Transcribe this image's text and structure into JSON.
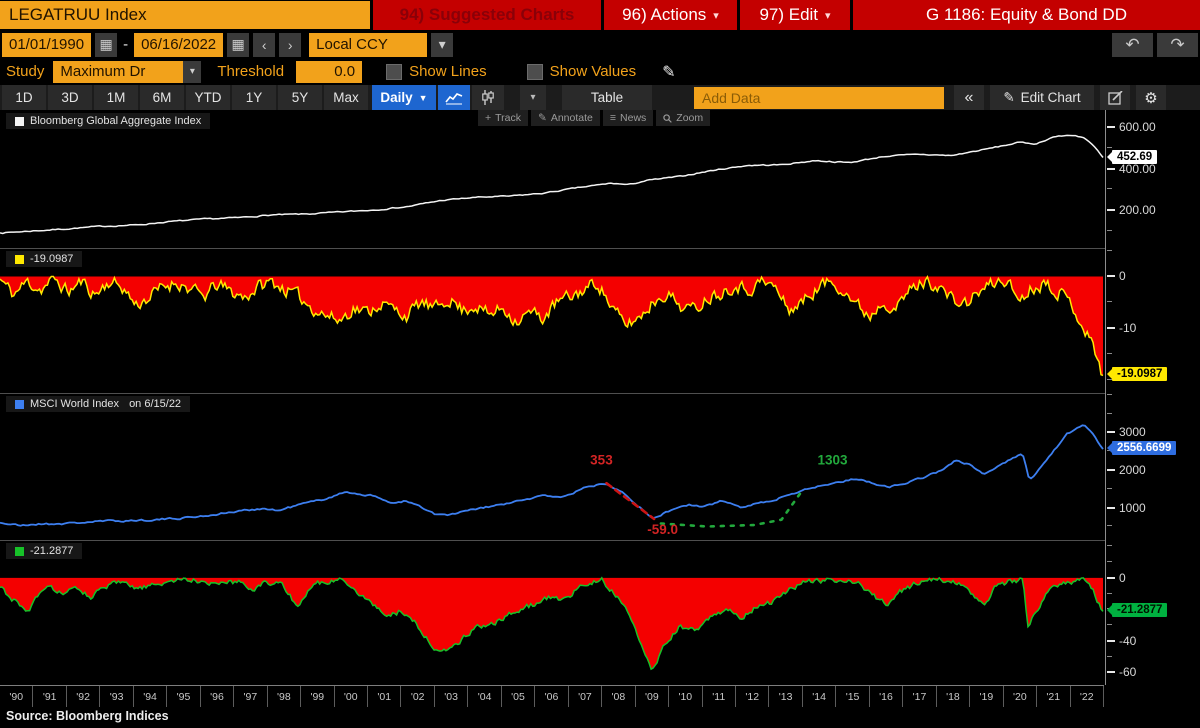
{
  "titlebar": {
    "ticker": "LEGATRUU Index",
    "suggested": "94) Suggested Charts",
    "actions": "96) Actions",
    "edit": "97) Edit",
    "title": "G 1186: Equity & Bond DD"
  },
  "datebar": {
    "start": "01/01/1990",
    "dash": "-",
    "end": "06/16/2022",
    "currency": "Local CCY"
  },
  "studybar": {
    "study_label": "Study",
    "study_value": "Maximum Dr",
    "threshold_label": "Threshold",
    "threshold_value": "0.0",
    "show_lines": "Show Lines",
    "show_values": "Show Values"
  },
  "toolbar": {
    "ranges": [
      "1D",
      "3D",
      "1M",
      "6M",
      "YTD",
      "1Y",
      "5Y",
      "Max"
    ],
    "period": "Daily",
    "table_label": "Table",
    "add_data_placeholder": "Add Data",
    "edit_chart": "Edit Chart"
  },
  "icons": {
    "calendar": "▦",
    "chevron_left": "‹",
    "chevron_right": "›",
    "dropdown": "▾",
    "daily_caret": "▼",
    "undo": "↶",
    "redo": "↷",
    "pencil": "✎",
    "collapse": "«",
    "gear": "⚙",
    "track": "+",
    "annotate": "✎",
    "news": "≡"
  },
  "minibar": {
    "items": [
      "Track",
      "Annotate",
      "News",
      "Zoom"
    ]
  },
  "xaxis": {
    "years": [
      "'90",
      "'91",
      "'92",
      "'93",
      "'94",
      "'95",
      "'96",
      "'97",
      "'98",
      "'99",
      "'00",
      "'01",
      "'02",
      "'03",
      "'04",
      "'05",
      "'06",
      "'07",
      "'08",
      "'09",
      "'10",
      "'11",
      "'12",
      "'13",
      "'14",
      "'15",
      "'16",
      "'17",
      "'18",
      "'19",
      "'20",
      "'21",
      "'22"
    ]
  },
  "source": "Source: Bloomberg Indices",
  "colors": {
    "amber": "#f2a21b",
    "red_bar": "#c40000",
    "blue_button": "#1e66d0",
    "fill_red": "#f40000",
    "line_white": "#f4f4f4",
    "line_yellow": "#ffe800",
    "line_blue": "#3d7ff0",
    "line_green": "#17c229"
  },
  "chart_data": [
    {
      "type": "line",
      "legend": "Bloomberg Global Aggregate Index",
      "color": "#f4f4f4",
      "x_range": [
        1990,
        2022.46
      ],
      "ylim": [
        20,
        680
      ],
      "yticks": [
        {
          "v": 600,
          "label": "600.00"
        },
        {
          "v": 400,
          "label": "400.00"
        },
        {
          "v": 200,
          "label": "200.00"
        }
      ],
      "minor_step": 100,
      "badge": {
        "label": "452.69",
        "value": 452.69,
        "bg": "#ffffff",
        "fg": "#000000"
      },
      "points": [
        [
          1990,
          92
        ],
        [
          1991,
          102
        ],
        [
          1992,
          112
        ],
        [
          1993,
          124
        ],
        [
          1994,
          130
        ],
        [
          1995,
          146
        ],
        [
          1996,
          158
        ],
        [
          1997,
          165
        ],
        [
          1998,
          178
        ],
        [
          1999,
          182
        ],
        [
          2000,
          192
        ],
        [
          2001,
          202
        ],
        [
          2002,
          218
        ],
        [
          2003,
          248
        ],
        [
          2004,
          262
        ],
        [
          2005,
          268
        ],
        [
          2006,
          282
        ],
        [
          2007,
          308
        ],
        [
          2008,
          330
        ],
        [
          2008.5,
          322
        ],
        [
          2009,
          342
        ],
        [
          2010,
          362
        ],
        [
          2011,
          392
        ],
        [
          2012,
          415
        ],
        [
          2013,
          418
        ],
        [
          2014,
          438
        ],
        [
          2015,
          428
        ],
        [
          2016,
          458
        ],
        [
          2017,
          468
        ],
        [
          2018,
          462
        ],
        [
          2019,
          492
        ],
        [
          2020,
          525
        ],
        [
          2020.5,
          518
        ],
        [
          2021,
          552
        ],
        [
          2021.6,
          560
        ],
        [
          2021.9,
          548
        ],
        [
          2022.2,
          505
        ],
        [
          2022.46,
          452.69
        ]
      ]
    },
    {
      "type": "area-drawdown",
      "legend": "-19.0987",
      "color": "#ffe800",
      "fill": "#f40000",
      "x_range": [
        1990,
        2022.46
      ],
      "ylim": [
        -22.5,
        5.5
      ],
      "yticks": [
        {
          "v": 0,
          "label": "0"
        },
        {
          "v": -10,
          "label": "-10"
        }
      ],
      "minor_step": 5,
      "badge": {
        "label": "-19.0987",
        "value": -19.0987,
        "bg": "#ffe800",
        "fg": "#000000"
      },
      "points": [
        [
          1990,
          -0.5
        ],
        [
          1990.4,
          -3.5
        ],
        [
          1990.8,
          -1
        ],
        [
          1991.2,
          -2.5
        ],
        [
          1991.6,
          -0.5
        ],
        [
          1992,
          -3
        ],
        [
          1992.4,
          -1
        ],
        [
          1992.8,
          -3.5
        ],
        [
          1993.2,
          -1
        ],
        [
          1993.6,
          -2
        ],
        [
          1994,
          -5.5
        ],
        [
          1994.4,
          -4
        ],
        [
          1994.8,
          -2
        ],
        [
          1995.2,
          -1
        ],
        [
          1995.6,
          -2.5
        ],
        [
          1996,
          -4
        ],
        [
          1996.4,
          -1.5
        ],
        [
          1996.8,
          -3
        ],
        [
          1997.2,
          -4
        ],
        [
          1997.6,
          -2
        ],
        [
          1998,
          -1
        ],
        [
          1998.4,
          -2.5
        ],
        [
          1998.8,
          -4
        ],
        [
          1999.2,
          -6
        ],
        [
          1999.6,
          -7.5
        ],
        [
          2000,
          -8.5
        ],
        [
          2000.4,
          -6
        ],
        [
          2000.8,
          -7
        ],
        [
          2001.2,
          -5
        ],
        [
          2001.6,
          -6.5
        ],
        [
          2002,
          -7.5
        ],
        [
          2002.4,
          -5
        ],
        [
          2002.8,
          -6.5
        ],
        [
          2003.2,
          -4
        ],
        [
          2003.6,
          -6.5
        ],
        [
          2004,
          -5.5
        ],
        [
          2004.4,
          -7.5
        ],
        [
          2004.8,
          -6
        ],
        [
          2005.2,
          -8.5
        ],
        [
          2005.6,
          -7
        ],
        [
          2006,
          -8
        ],
        [
          2006.4,
          -5
        ],
        [
          2006.8,
          -4
        ],
        [
          2007.2,
          -2.5
        ],
        [
          2007.6,
          -1
        ],
        [
          2008,
          -6
        ],
        [
          2008.4,
          -9.5
        ],
        [
          2008.8,
          -8
        ],
        [
          2009.2,
          -5
        ],
        [
          2009.6,
          -3
        ],
        [
          2010,
          -5.5
        ],
        [
          2010.4,
          -6.5
        ],
        [
          2010.8,
          -4
        ],
        [
          2011.2,
          -3
        ],
        [
          2011.6,
          -1.5
        ],
        [
          2012,
          -2.5
        ],
        [
          2012.4,
          -1
        ],
        [
          2012.8,
          -2
        ],
        [
          2013.2,
          -6.5
        ],
        [
          2013.6,
          -5
        ],
        [
          2014,
          -2.5
        ],
        [
          2014.4,
          -1
        ],
        [
          2014.8,
          -2
        ],
        [
          2015.2,
          -5.5
        ],
        [
          2015.6,
          -7.5
        ],
        [
          2016,
          -4.5
        ],
        [
          2016.4,
          -6
        ],
        [
          2016.8,
          -2.5
        ],
        [
          2017.2,
          -1
        ],
        [
          2017.6,
          -1.5
        ],
        [
          2018,
          -4.5
        ],
        [
          2018.4,
          -5.5
        ],
        [
          2018.8,
          -3
        ],
        [
          2019.2,
          -1.5
        ],
        [
          2019.6,
          -0.5
        ],
        [
          2020,
          -4.5
        ],
        [
          2020.4,
          -2
        ],
        [
          2020.8,
          -1
        ],
        [
          2021.2,
          -3
        ],
        [
          2021.6,
          -6
        ],
        [
          2022,
          -11
        ],
        [
          2022.25,
          -15
        ],
        [
          2022.46,
          -19.0987
        ]
      ]
    },
    {
      "type": "line",
      "legend": "MSCI World Index",
      "legend_suffix": "on 6/15/22",
      "color": "#3d7ff0",
      "x_range": [
        1990,
        2022.46
      ],
      "ylim": [
        140,
        4050
      ],
      "yticks": [
        {
          "v": 3000,
          "label": "3000"
        },
        {
          "v": 2000,
          "label": "2000"
        },
        {
          "v": 1000,
          "label": "1000"
        }
      ],
      "minor_step": 500,
      "badge": {
        "label": "2556.6699",
        "value": 2556.6699,
        "bg": "#2e6de0",
        "fg": "#ffffff"
      },
      "points": [
        [
          1990,
          600
        ],
        [
          1990.6,
          520
        ],
        [
          1991,
          560
        ],
        [
          1992,
          580
        ],
        [
          1993,
          640
        ],
        [
          1994,
          660
        ],
        [
          1995,
          700
        ],
        [
          1996,
          780
        ],
        [
          1997,
          900
        ],
        [
          1997.7,
          980
        ],
        [
          1998.2,
          920
        ],
        [
          1998.8,
          1080
        ],
        [
          1999.5,
          1220
        ],
        [
          2000.2,
          1420
        ],
        [
          2000.9,
          1320
        ],
        [
          2001.6,
          1120
        ],
        [
          2001.9,
          1180
        ],
        [
          2002.3,
          1050
        ],
        [
          2002.8,
          820
        ],
        [
          2003.2,
          800
        ],
        [
          2004,
          960
        ],
        [
          2005,
          1120
        ],
        [
          2006,
          1320
        ],
        [
          2006.6,
          1290
        ],
        [
          2007.3,
          1560
        ],
        [
          2007.85,
          1650
        ],
        [
          2008.3,
          1440
        ],
        [
          2008.7,
          1120
        ],
        [
          2009.2,
          700
        ],
        [
          2009.8,
          960
        ],
        [
          2010.3,
          1080
        ],
        [
          2010.7,
          1000
        ],
        [
          2011.2,
          1180
        ],
        [
          2011.8,
          1030
        ],
        [
          2012.3,
          1120
        ],
        [
          2012.8,
          1200
        ],
        [
          2013.3,
          1380
        ],
        [
          2013.8,
          1520
        ],
        [
          2014.5,
          1640
        ],
        [
          2015.2,
          1780
        ],
        [
          2015.8,
          1620
        ],
        [
          2016.2,
          1560
        ],
        [
          2016.9,
          1720
        ],
        [
          2017.6,
          1950
        ],
        [
          2018.1,
          2240
        ],
        [
          2018.6,
          2120
        ],
        [
          2018.95,
          1880
        ],
        [
          2019.6,
          2220
        ],
        [
          2020.1,
          2430
        ],
        [
          2020.3,
          1720
        ],
        [
          2020.9,
          2380
        ],
        [
          2021.4,
          2950
        ],
        [
          2021.9,
          3200
        ],
        [
          2022.1,
          3050
        ],
        [
          2022.35,
          2700
        ],
        [
          2022.46,
          2556.6699
        ]
      ],
      "annotations": {
        "labels": [
          {
            "text": "353",
            "x": 2007.7,
            "y": 2150,
            "color": "#d22424"
          },
          {
            "text": "-59.0",
            "x": 2009.5,
            "y": 300,
            "color": "#d22424"
          },
          {
            "text": "1303",
            "x": 2014.5,
            "y": 2150,
            "color": "#22a83c"
          }
        ],
        "dashes": [
          {
            "color": "#cc1414",
            "dash": "6 5",
            "pts": [
              [
                2007.85,
                1650
              ],
              [
                2009.25,
                700
              ]
            ]
          },
          {
            "color": "#22a83c",
            "dash": "3 7",
            "pts": [
              [
                2009.45,
                580
              ],
              [
                2010.8,
                500
              ],
              [
                2012.2,
                540
              ],
              [
                2013.0,
                680
              ],
              [
                2013.55,
                1380
              ]
            ]
          }
        ]
      }
    },
    {
      "type": "area-drawdown",
      "legend": "-21.2877",
      "color": "#17c229",
      "fill": "#f40000",
      "x_range": [
        1990,
        2022.46
      ],
      "ylim": [
        -68,
        24
      ],
      "yticks": [
        {
          "v": 0,
          "label": "0"
        },
        {
          "v": -40,
          "label": "-40"
        },
        {
          "v": -60,
          "label": "-60"
        }
      ],
      "minor_step": 10,
      "badge": {
        "label": "-21.2877",
        "value": -21.2877,
        "bg": "#00b140",
        "fg": "#001400"
      },
      "points": [
        [
          1990,
          -6
        ],
        [
          1990.4,
          -14
        ],
        [
          1990.8,
          -22
        ],
        [
          1991.1,
          -12
        ],
        [
          1991.5,
          -6
        ],
        [
          1991.9,
          -10
        ],
        [
          1992.3,
          -7
        ],
        [
          1992.7,
          -12
        ],
        [
          1993.1,
          -6
        ],
        [
          1993.5,
          -3
        ],
        [
          1994,
          -7
        ],
        [
          1994.5,
          -5
        ],
        [
          1995,
          -2
        ],
        [
          1995.5,
          -1
        ],
        [
          1996,
          -2
        ],
        [
          1996.5,
          -4
        ],
        [
          1997,
          -2
        ],
        [
          1997.4,
          -7
        ],
        [
          1997.8,
          -3
        ],
        [
          1998.2,
          -2
        ],
        [
          1998.6,
          -14
        ],
        [
          1998.8,
          -19
        ],
        [
          1999.1,
          -6
        ],
        [
          1999.6,
          -2
        ],
        [
          2000.1,
          -1
        ],
        [
          2000.6,
          -10
        ],
        [
          2001,
          -17
        ],
        [
          2001.4,
          -24
        ],
        [
          2001.8,
          -21
        ],
        [
          2002.2,
          -28
        ],
        [
          2002.6,
          -40
        ],
        [
          2003,
          -48
        ],
        [
          2003.3,
          -45
        ],
        [
          2003.7,
          -36
        ],
        [
          2004.2,
          -30
        ],
        [
          2004.7,
          -27
        ],
        [
          2005.2,
          -21
        ],
        [
          2005.7,
          -17
        ],
        [
          2006.2,
          -12
        ],
        [
          2006.6,
          -14
        ],
        [
          2007.1,
          -5
        ],
        [
          2007.7,
          -1
        ],
        [
          2008.1,
          -10
        ],
        [
          2008.5,
          -22
        ],
        [
          2008.9,
          -45
        ],
        [
          2009.2,
          -58
        ],
        [
          2009.6,
          -41
        ],
        [
          2010,
          -31
        ],
        [
          2010.5,
          -34
        ],
        [
          2011,
          -23
        ],
        [
          2011.4,
          -20
        ],
        [
          2011.8,
          -25
        ],
        [
          2012.2,
          -19
        ],
        [
          2012.7,
          -15
        ],
        [
          2013.2,
          -8
        ],
        [
          2013.7,
          -3
        ],
        [
          2014.2,
          -2
        ],
        [
          2014.7,
          -1
        ],
        [
          2015.2,
          -2
        ],
        [
          2015.7,
          -11
        ],
        [
          2016.1,
          -17
        ],
        [
          2016.5,
          -9
        ],
        [
          2017,
          -3
        ],
        [
          2017.5,
          -1
        ],
        [
          2018,
          -2
        ],
        [
          2018.5,
          -7
        ],
        [
          2018.95,
          -17
        ],
        [
          2019.3,
          -6
        ],
        [
          2019.8,
          -2
        ],
        [
          2020.1,
          -1
        ],
        [
          2020.25,
          -33
        ],
        [
          2020.5,
          -20
        ],
        [
          2020.9,
          -8
        ],
        [
          2021.3,
          -3
        ],
        [
          2021.9,
          -1
        ],
        [
          2022.15,
          -8
        ],
        [
          2022.46,
          -21.2877
        ]
      ]
    }
  ]
}
